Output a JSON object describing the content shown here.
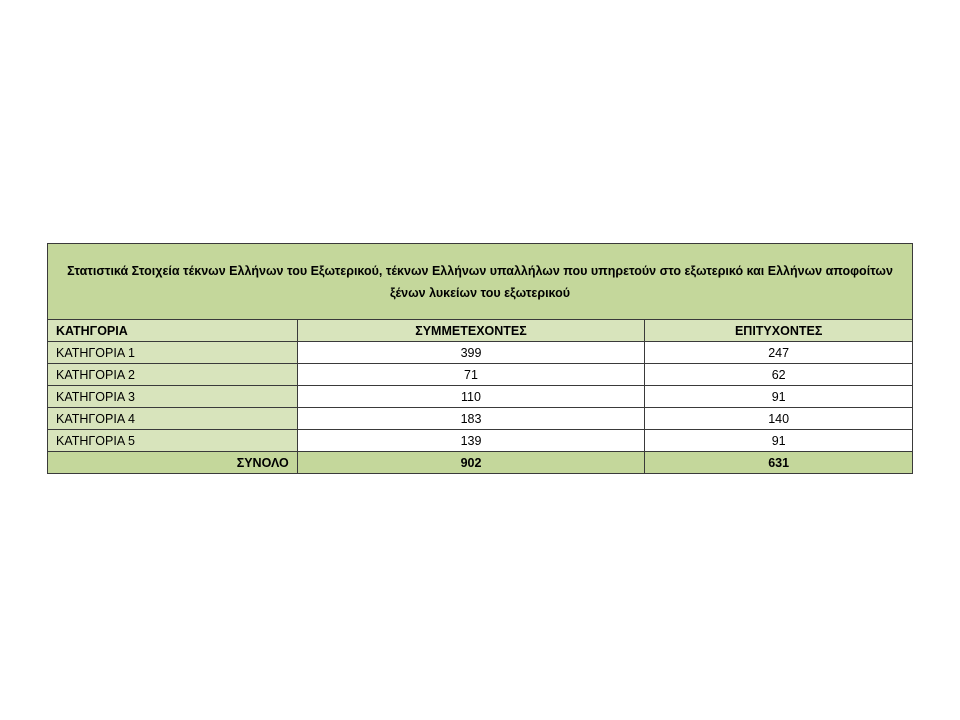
{
  "table": {
    "title": "Στατιστικά Στοιχεία τέκνων Ελλήνων του Εξωτερικού, τέκνων Ελλήνων υπαλλήλων που υπηρετούν στο εξωτερικό και Ελλήνων αποφοίτων ξένων λυκείων του εξωτερικού",
    "headers": [
      "ΚΑΤΗΓΟΡΙΑ",
      "ΣΥΜΜΕΤΕΧΟΝΤΕΣ",
      "ΕΠΙΤΥΧΟΝΤΕΣ"
    ],
    "rows": [
      {
        "category": "ΚΑΤΗΓΟΡΙΑ 1",
        "participants": "399",
        "successful": "247"
      },
      {
        "category": "ΚΑΤΗΓΟΡΙΑ 2",
        "participants": "71",
        "successful": "62"
      },
      {
        "category": "ΚΑΤΗΓΟΡΙΑ 3",
        "participants": "110",
        "successful": "91"
      },
      {
        "category": "ΚΑΤΗΓΟΡΙΑ 4",
        "participants": "183",
        "successful": "140"
      },
      {
        "category": "ΚΑΤΗΓΟΡΙΑ 5",
        "participants": "139",
        "successful": "91"
      }
    ],
    "total": {
      "label": "ΣΥΝΟΛΟ",
      "participants": "902",
      "successful": "631"
    },
    "colors": {
      "title_bg": "#c4d79b",
      "category_bg": "#d8e4bc",
      "value_bg": "#ffffff"
    }
  }
}
